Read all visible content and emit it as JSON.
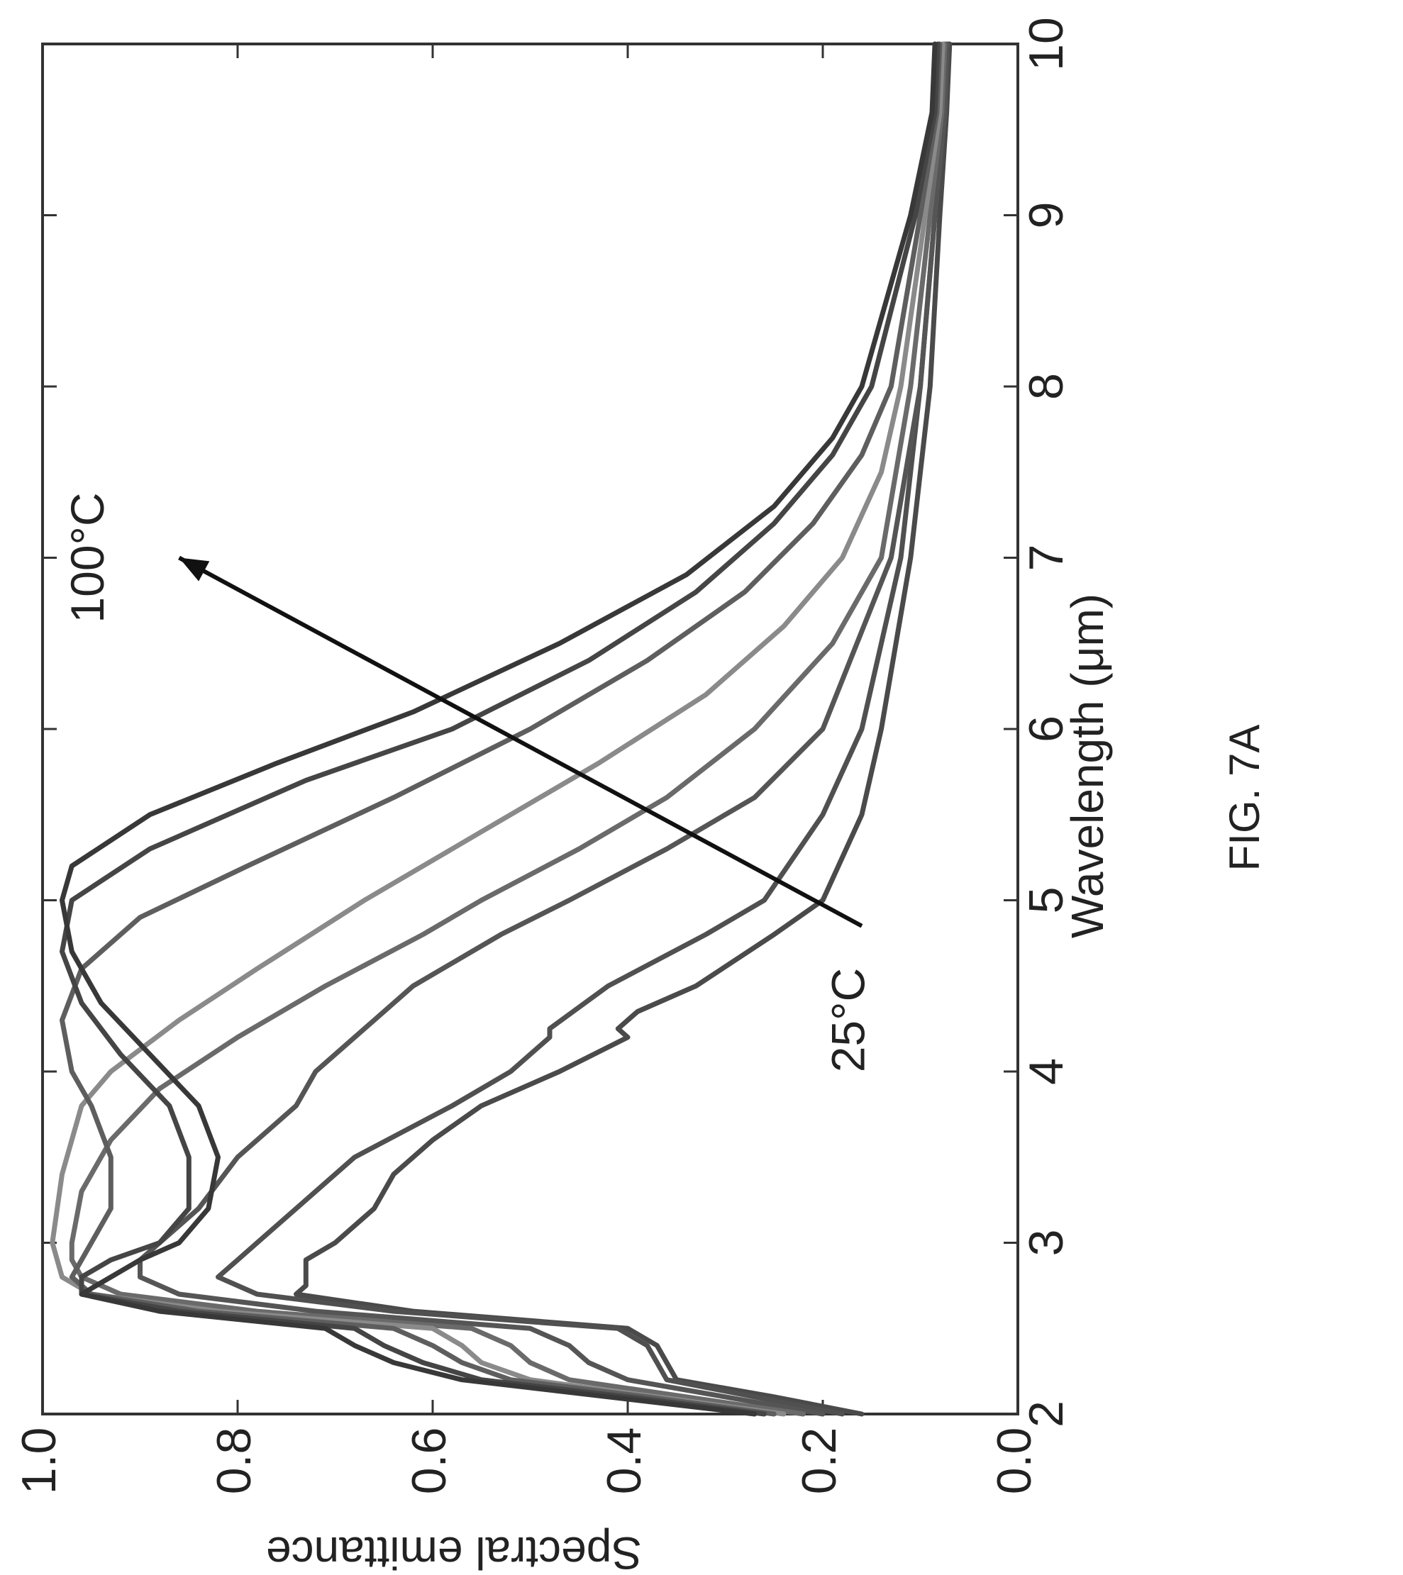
{
  "figure": {
    "caption": "FIG. 7A"
  },
  "chart_data": {
    "type": "line",
    "title": "",
    "xlabel": "Wavelength (μm)",
    "ylabel": "Spectral emittance",
    "xlim": [
      2,
      10
    ],
    "ylim": [
      0.0,
      1.0
    ],
    "x_ticks": [
      "2",
      "3",
      "4",
      "5",
      "6",
      "7",
      "8",
      "9",
      "10"
    ],
    "y_ticks": [
      "0.0",
      "0.2",
      "0.4",
      "0.6",
      "0.8",
      "1.0"
    ],
    "grid": false,
    "annotations": [
      {
        "text": "25°C",
        "x": 4.3,
        "y": 0.17
      },
      {
        "text": "100°C",
        "x": 7.0,
        "y": 0.95
      }
    ],
    "arrow": {
      "from": [
        4.85,
        0.16
      ],
      "to": [
        7.0,
        0.86
      ]
    },
    "series": [
      {
        "color": "#4a4a4a",
        "points": [
          [
            2.0,
            0.16
          ],
          [
            2.1,
            0.25
          ],
          [
            2.2,
            0.35
          ],
          [
            2.3,
            0.36
          ],
          [
            2.4,
            0.37
          ],
          [
            2.5,
            0.4
          ],
          [
            2.6,
            0.62
          ],
          [
            2.7,
            0.74
          ],
          [
            2.75,
            0.73
          ],
          [
            2.9,
            0.73
          ],
          [
            3.0,
            0.7
          ],
          [
            3.2,
            0.66
          ],
          [
            3.4,
            0.64
          ],
          [
            3.6,
            0.6
          ],
          [
            3.8,
            0.55
          ],
          [
            4.0,
            0.47
          ],
          [
            4.2,
            0.4
          ],
          [
            4.25,
            0.41
          ],
          [
            4.35,
            0.39
          ],
          [
            4.5,
            0.33
          ],
          [
            4.8,
            0.25
          ],
          [
            5.0,
            0.2
          ],
          [
            5.5,
            0.16
          ],
          [
            6.0,
            0.14
          ],
          [
            7.0,
            0.11
          ],
          [
            8.0,
            0.09
          ],
          [
            9.0,
            0.08
          ],
          [
            9.6,
            0.073
          ],
          [
            10.0,
            0.07
          ]
        ]
      },
      {
        "color": "#505050",
        "points": [
          [
            2.0,
            0.18
          ],
          [
            2.1,
            0.27
          ],
          [
            2.2,
            0.36
          ],
          [
            2.3,
            0.37
          ],
          [
            2.4,
            0.38
          ],
          [
            2.5,
            0.41
          ],
          [
            2.6,
            0.64
          ],
          [
            2.7,
            0.78
          ],
          [
            2.8,
            0.82
          ],
          [
            2.9,
            0.8
          ],
          [
            3.0,
            0.78
          ],
          [
            3.2,
            0.74
          ],
          [
            3.5,
            0.68
          ],
          [
            3.8,
            0.58
          ],
          [
            4.0,
            0.52
          ],
          [
            4.2,
            0.48
          ],
          [
            4.25,
            0.48
          ],
          [
            4.5,
            0.42
          ],
          [
            4.8,
            0.32
          ],
          [
            5.0,
            0.26
          ],
          [
            5.5,
            0.2
          ],
          [
            6.0,
            0.16
          ],
          [
            7.0,
            0.12
          ],
          [
            8.0,
            0.1
          ],
          [
            9.0,
            0.085
          ],
          [
            9.6,
            0.075
          ],
          [
            10.0,
            0.072
          ]
        ]
      },
      {
        "color": "#555555",
        "points": [
          [
            2.0,
            0.2
          ],
          [
            2.1,
            0.3
          ],
          [
            2.2,
            0.4
          ],
          [
            2.3,
            0.44
          ],
          [
            2.4,
            0.46
          ],
          [
            2.5,
            0.5
          ],
          [
            2.6,
            0.72
          ],
          [
            2.7,
            0.86
          ],
          [
            2.8,
            0.9
          ],
          [
            2.9,
            0.9
          ],
          [
            3.0,
            0.88
          ],
          [
            3.2,
            0.84
          ],
          [
            3.5,
            0.8
          ],
          [
            3.8,
            0.74
          ],
          [
            4.0,
            0.72
          ],
          [
            4.3,
            0.66
          ],
          [
            4.5,
            0.62
          ],
          [
            4.8,
            0.53
          ],
          [
            5.0,
            0.46
          ],
          [
            5.3,
            0.36
          ],
          [
            5.6,
            0.27
          ],
          [
            6.0,
            0.2
          ],
          [
            7.0,
            0.13
          ],
          [
            8.0,
            0.1
          ],
          [
            9.0,
            0.085
          ],
          [
            9.6,
            0.075
          ],
          [
            10.0,
            0.073
          ]
        ]
      },
      {
        "color": "#6a6a6a",
        "points": [
          [
            2.0,
            0.22
          ],
          [
            2.1,
            0.34
          ],
          [
            2.2,
            0.46
          ],
          [
            2.3,
            0.5
          ],
          [
            2.4,
            0.52
          ],
          [
            2.5,
            0.56
          ],
          [
            2.6,
            0.78
          ],
          [
            2.7,
            0.92
          ],
          [
            2.8,
            0.96
          ],
          [
            2.9,
            0.97
          ],
          [
            3.0,
            0.97
          ],
          [
            3.3,
            0.96
          ],
          [
            3.6,
            0.93
          ],
          [
            3.9,
            0.88
          ],
          [
            4.2,
            0.8
          ],
          [
            4.5,
            0.71
          ],
          [
            4.8,
            0.61
          ],
          [
            5.0,
            0.55
          ],
          [
            5.3,
            0.45
          ],
          [
            5.6,
            0.36
          ],
          [
            6.0,
            0.27
          ],
          [
            6.5,
            0.19
          ],
          [
            7.0,
            0.14
          ],
          [
            8.0,
            0.11
          ],
          [
            9.0,
            0.09
          ],
          [
            9.6,
            0.078
          ],
          [
            10.0,
            0.075
          ]
        ]
      },
      {
        "color": "#8a8a8a",
        "points": [
          [
            2.0,
            0.24
          ],
          [
            2.1,
            0.37
          ],
          [
            2.2,
            0.5
          ],
          [
            2.3,
            0.55
          ],
          [
            2.4,
            0.57
          ],
          [
            2.5,
            0.6
          ],
          [
            2.6,
            0.82
          ],
          [
            2.7,
            0.95
          ],
          [
            2.8,
            0.98
          ],
          [
            3.0,
            0.99
          ],
          [
            3.4,
            0.98
          ],
          [
            3.8,
            0.96
          ],
          [
            4.0,
            0.93
          ],
          [
            4.3,
            0.86
          ],
          [
            4.6,
            0.78
          ],
          [
            5.0,
            0.67
          ],
          [
            5.4,
            0.55
          ],
          [
            5.8,
            0.43
          ],
          [
            6.2,
            0.32
          ],
          [
            6.6,
            0.24
          ],
          [
            7.0,
            0.18
          ],
          [
            7.5,
            0.14
          ],
          [
            8.0,
            0.12
          ],
          [
            9.0,
            0.095
          ],
          [
            9.6,
            0.08
          ],
          [
            10.0,
            0.077
          ]
        ]
      },
      {
        "color": "#5e5e5e",
        "points": [
          [
            2.0,
            0.25
          ],
          [
            2.1,
            0.38
          ],
          [
            2.2,
            0.52
          ],
          [
            2.3,
            0.57
          ],
          [
            2.4,
            0.6
          ],
          [
            2.5,
            0.64
          ],
          [
            2.6,
            0.84
          ],
          [
            2.7,
            0.95
          ],
          [
            2.8,
            0.97
          ],
          [
            3.0,
            0.95
          ],
          [
            3.2,
            0.93
          ],
          [
            3.5,
            0.93
          ],
          [
            3.8,
            0.95
          ],
          [
            4.0,
            0.97
          ],
          [
            4.3,
            0.98
          ],
          [
            4.6,
            0.96
          ],
          [
            4.9,
            0.9
          ],
          [
            5.2,
            0.79
          ],
          [
            5.6,
            0.64
          ],
          [
            6.0,
            0.5
          ],
          [
            6.4,
            0.38
          ],
          [
            6.8,
            0.28
          ],
          [
            7.2,
            0.21
          ],
          [
            7.6,
            0.16
          ],
          [
            8.0,
            0.13
          ],
          [
            9.0,
            0.1
          ],
          [
            9.6,
            0.083
          ],
          [
            10.0,
            0.08
          ]
        ]
      },
      {
        "color": "#454545",
        "points": [
          [
            2.0,
            0.26
          ],
          [
            2.1,
            0.4
          ],
          [
            2.2,
            0.55
          ],
          [
            2.3,
            0.61
          ],
          [
            2.4,
            0.65
          ],
          [
            2.5,
            0.68
          ],
          [
            2.6,
            0.86
          ],
          [
            2.7,
            0.96
          ],
          [
            2.8,
            0.96
          ],
          [
            2.9,
            0.93
          ],
          [
            3.0,
            0.88
          ],
          [
            3.2,
            0.85
          ],
          [
            3.5,
            0.85
          ],
          [
            3.8,
            0.87
          ],
          [
            4.1,
            0.92
          ],
          [
            4.4,
            0.96
          ],
          [
            4.7,
            0.98
          ],
          [
            5.0,
            0.97
          ],
          [
            5.3,
            0.89
          ],
          [
            5.7,
            0.73
          ],
          [
            6.0,
            0.58
          ],
          [
            6.4,
            0.44
          ],
          [
            6.8,
            0.33
          ],
          [
            7.2,
            0.25
          ],
          [
            7.6,
            0.19
          ],
          [
            8.0,
            0.15
          ],
          [
            9.0,
            0.105
          ],
          [
            9.6,
            0.085
          ],
          [
            10.0,
            0.082
          ]
        ]
      },
      {
        "color": "#383838",
        "points": [
          [
            2.0,
            0.27
          ],
          [
            2.1,
            0.42
          ],
          [
            2.2,
            0.57
          ],
          [
            2.3,
            0.64
          ],
          [
            2.4,
            0.68
          ],
          [
            2.5,
            0.71
          ],
          [
            2.6,
            0.88
          ],
          [
            2.7,
            0.96
          ],
          [
            2.8,
            0.93
          ],
          [
            2.9,
            0.9
          ],
          [
            3.0,
            0.86
          ],
          [
            3.2,
            0.83
          ],
          [
            3.5,
            0.82
          ],
          [
            3.8,
            0.84
          ],
          [
            4.1,
            0.89
          ],
          [
            4.4,
            0.94
          ],
          [
            4.7,
            0.97
          ],
          [
            5.0,
            0.98
          ],
          [
            5.2,
            0.97
          ],
          [
            5.5,
            0.89
          ],
          [
            5.8,
            0.76
          ],
          [
            6.1,
            0.62
          ],
          [
            6.5,
            0.47
          ],
          [
            6.9,
            0.34
          ],
          [
            7.3,
            0.25
          ],
          [
            7.7,
            0.19
          ],
          [
            8.0,
            0.16
          ],
          [
            9.0,
            0.11
          ],
          [
            9.6,
            0.088
          ],
          [
            10.0,
            0.085
          ]
        ]
      }
    ]
  }
}
